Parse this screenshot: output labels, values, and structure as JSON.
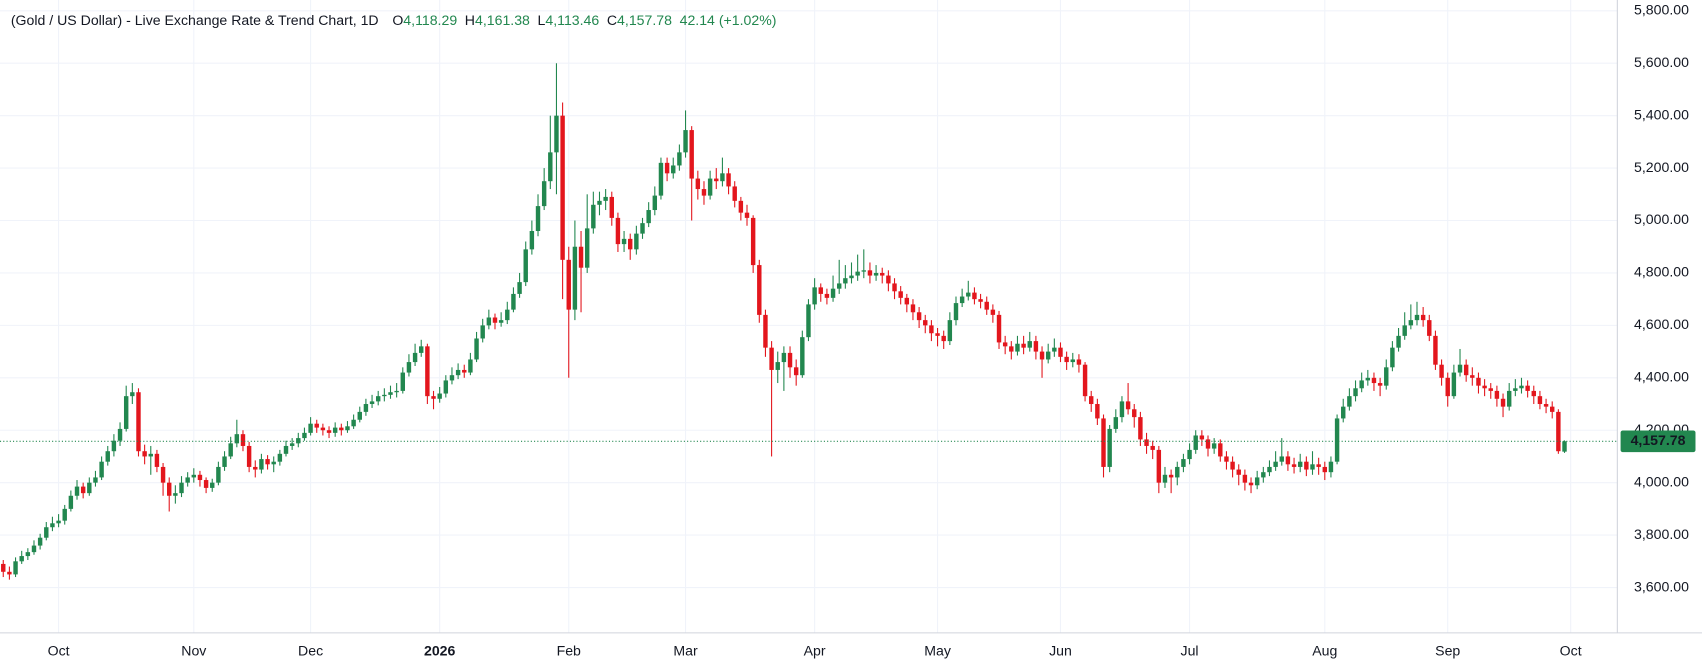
{
  "chart_data": {
    "type": "candlestick",
    "title": "(Gold / US Dollar) - Live Exchange Rate & Trend Chart, 1D",
    "ohlc_legend": [
      {
        "label": "O",
        "value": "4,118.29"
      },
      {
        "label": "H",
        "value": "4,161.38"
      },
      {
        "label": "L",
        "value": "4,113.46"
      },
      {
        "label": "C",
        "value": "4,157.78"
      }
    ],
    "change": "42.14 (+1.02%)",
    "categories": [
      null,
      null,
      null,
      null,
      null,
      null,
      null,
      null,
      null,
      "Oct",
      null,
      null,
      null,
      null,
      null,
      null,
      null,
      null,
      null,
      null,
      null,
      null,
      null,
      null,
      null,
      null,
      null,
      null,
      null,
      null,
      null,
      "Nov",
      null,
      null,
      null,
      null,
      null,
      null,
      null,
      null,
      null,
      null,
      null,
      null,
      null,
      null,
      null,
      null,
      null,
      null,
      "Dec",
      null,
      null,
      null,
      null,
      null,
      null,
      null,
      null,
      null,
      null,
      null,
      null,
      null,
      null,
      null,
      null,
      null,
      null,
      null,
      null,
      "2026",
      null,
      null,
      null,
      null,
      null,
      null,
      null,
      null,
      null,
      null,
      null,
      null,
      null,
      null,
      null,
      null,
      null,
      null,
      null,
      null,
      "Feb",
      null,
      null,
      null,
      null,
      null,
      null,
      null,
      null,
      null,
      null,
      null,
      null,
      null,
      null,
      null,
      null,
      null,
      null,
      "Mar",
      null,
      null,
      null,
      null,
      null,
      null,
      null,
      null,
      null,
      null,
      null,
      null,
      null,
      null,
      null,
      null,
      null,
      null,
      null,
      null,
      "Apr",
      null,
      null,
      null,
      null,
      null,
      null,
      null,
      null,
      null,
      null,
      null,
      null,
      null,
      null,
      null,
      null,
      null,
      null,
      null,
      "May",
      null,
      null,
      null,
      null,
      null,
      null,
      null,
      null,
      null,
      null,
      null,
      null,
      null,
      null,
      null,
      null,
      null,
      null,
      null,
      "Jun",
      null,
      null,
      null,
      null,
      null,
      null,
      null,
      null,
      null,
      null,
      null,
      null,
      null,
      null,
      null,
      null,
      null,
      null,
      null,
      null,
      "Jul",
      null,
      null,
      null,
      null,
      null,
      null,
      null,
      null,
      null,
      null,
      null,
      null,
      null,
      null,
      null,
      null,
      null,
      null,
      null,
      null,
      null,
      "Aug",
      null,
      null,
      null,
      null,
      null,
      null,
      null,
      null,
      null,
      null,
      null,
      null,
      null,
      null,
      null,
      null,
      null,
      null,
      null,
      "Sep",
      null,
      null,
      null,
      null,
      null,
      null,
      null,
      null,
      null,
      null,
      null,
      null,
      null,
      null,
      null,
      null,
      null,
      null,
      null,
      "Oct"
    ],
    "open": [
      3690,
      3660,
      3650,
      3700,
      3720,
      3735,
      3760,
      3790,
      3830,
      3845,
      3855,
      3900,
      3950,
      3985,
      3960,
      4000,
      4020,
      4080,
      4120,
      4160,
      4205,
      4330,
      4345,
      4120,
      4100,
      4110,
      4060,
      4000,
      3950,
      3960,
      4000,
      4020,
      4030,
      4010,
      3980,
      4000,
      4060,
      4100,
      4150,
      4185,
      4140,
      4060,
      4050,
      4090,
      4070,
      4080,
      4110,
      4140,
      4150,
      4170,
      4190,
      4225,
      4210,
      4200,
      4190,
      4210,
      4200,
      4215,
      4240,
      4270,
      4300,
      4310,
      4330,
      4335,
      4345,
      4350,
      4420,
      4460,
      4495,
      4520,
      4330,
      4320,
      4340,
      4390,
      4410,
      4430,
      4420,
      4470,
      4550,
      4600,
      4630,
      4610,
      4620,
      4660,
      4720,
      4765,
      4890,
      4960,
      5055,
      5150,
      5260,
      5400,
      4850,
      4660,
      4900,
      4820,
      4970,
      5060,
      5075,
      5090,
      5010,
      4910,
      4930,
      4890,
      4950,
      4990,
      5040,
      5095,
      5220,
      5180,
      5210,
      5260,
      5345,
      5160,
      5120,
      5095,
      5160,
      5150,
      5180,
      5130,
      5075,
      5030,
      5010,
      4830,
      4640,
      4515,
      4430,
      4460,
      4495,
      4440,
      4410,
      4555,
      4680,
      4745,
      4720,
      4705,
      4740,
      4760,
      4780,
      4790,
      4805,
      4810,
      4790,
      4800,
      4790,
      4760,
      4730,
      4705,
      4680,
      4650,
      4620,
      4600,
      4570,
      4560,
      4540,
      4620,
      4685,
      4710,
      4725,
      4700,
      4690,
      4660,
      4640,
      4535,
      4520,
      4500,
      4530,
      4515,
      4540,
      4500,
      4470,
      4500,
      4515,
      4480,
      4460,
      4470,
      4450,
      4330,
      4300,
      4245,
      4060,
      4205,
      4250,
      4310,
      4280,
      4250,
      4165,
      4140,
      4125,
      4000,
      4030,
      4020,
      4060,
      4090,
      4125,
      4180,
      4165,
      4130,
      4150,
      4100,
      4080,
      4050,
      4030,
      4000,
      3990,
      4020,
      4040,
      4060,
      4080,
      4100,
      4070,
      4060,
      4080,
      4050,
      4070,
      4060,
      4040,
      4080,
      4245,
      4290,
      4330,
      4360,
      4390,
      4400,
      4380,
      4370,
      4440,
      4515,
      4560,
      4600,
      4620,
      4640,
      4620,
      4560,
      4450,
      4400,
      4330,
      4420,
      4450,
      4410,
      4400,
      4370,
      4360,
      4350,
      4320,
      4290,
      4350,
      4360,
      4370,
      4350,
      4330,
      4300,
      4290,
      4270,
      4118.29,
      null
    ],
    "high": [
      3705,
      3680,
      3715,
      3740,
      3750,
      3780,
      3805,
      3850,
      3870,
      3880,
      3915,
      3970,
      4010,
      4000,
      4020,
      4045,
      4100,
      4140,
      4185,
      4230,
      4370,
      4380,
      4360,
      4145,
      4140,
      4125,
      4075,
      4020,
      3990,
      4025,
      4040,
      4055,
      4045,
      4020,
      4015,
      4080,
      4120,
      4175,
      4240,
      4200,
      4155,
      4085,
      4110,
      4105,
      4100,
      4125,
      4160,
      4170,
      4190,
      4210,
      4250,
      4240,
      4225,
      4215,
      4230,
      4225,
      4235,
      4260,
      4290,
      4320,
      4335,
      4350,
      4360,
      4370,
      4380,
      4440,
      4490,
      4530,
      4545,
      4530,
      4350,
      4365,
      4410,
      4440,
      4455,
      4450,
      4495,
      4575,
      4625,
      4660,
      4645,
      4650,
      4690,
      4745,
      4800,
      4920,
      5000,
      5100,
      5200,
      5400,
      5600,
      5450,
      4900,
      5000,
      4960,
      5100,
      5110,
      5110,
      5120,
      5110,
      5030,
      4960,
      4950,
      4980,
      5010,
      5070,
      5130,
      5240,
      5240,
      5240,
      5290,
      5420,
      5360,
      5190,
      5150,
      5190,
      5200,
      5240,
      5200,
      5150,
      5090,
      5060,
      5020,
      4850,
      4660,
      4540,
      4500,
      4520,
      4520,
      4470,
      4580,
      4700,
      4780,
      4760,
      4740,
      4790,
      4850,
      4830,
      4840,
      4870,
      4890,
      4840,
      4830,
      4820,
      4810,
      4780,
      4750,
      4720,
      4700,
      4670,
      4640,
      4620,
      4590,
      4580,
      4650,
      4710,
      4740,
      4770,
      4745,
      4720,
      4710,
      4680,
      4655,
      4560,
      4540,
      4560,
      4560,
      4575,
      4560,
      4520,
      4530,
      4550,
      4535,
      4500,
      4495,
      4490,
      4460,
      4350,
      4320,
      4260,
      4220,
      4280,
      4330,
      4380,
      4300,
      4270,
      4190,
      4160,
      4140,
      4060,
      4050,
      4080,
      4110,
      4150,
      4200,
      4200,
      4180,
      4170,
      4165,
      4120,
      4100,
      4070,
      4050,
      4020,
      4045,
      4060,
      4085,
      4120,
      4170,
      4120,
      4095,
      4110,
      4100,
      4120,
      4095,
      4080,
      4100,
      4260,
      4320,
      4360,
      4390,
      4420,
      4430,
      4420,
      4400,
      4470,
      4540,
      4590,
      4650,
      4680,
      4690,
      4670,
      4640,
      4580,
      4470,
      4420,
      4450,
      4510,
      4470,
      4440,
      4420,
      4395,
      4380,
      4370,
      4340,
      4380,
      4395,
      4400,
      4390,
      4370,
      4350,
      4320,
      4310,
      4280,
      4161.38,
      null
    ],
    "low": [
      3640,
      3630,
      3640,
      3690,
      3705,
      3725,
      3745,
      3780,
      3815,
      3830,
      3840,
      3890,
      3935,
      3940,
      3950,
      3985,
      4010,
      4065,
      4100,
      4140,
      4195,
      4300,
      4100,
      4070,
      4030,
      4040,
      3950,
      3890,
      3920,
      3945,
      3985,
      4000,
      3985,
      3960,
      3965,
      3990,
      4045,
      4090,
      4135,
      4120,
      4040,
      4020,
      4035,
      4050,
      4040,
      4065,
      4100,
      4125,
      4135,
      4160,
      4180,
      4190,
      4180,
      4170,
      4175,
      4180,
      4190,
      4205,
      4230,
      4255,
      4285,
      4295,
      4310,
      4320,
      4325,
      4340,
      4405,
      4445,
      4480,
      4300,
      4280,
      4305,
      4325,
      4375,
      4395,
      4400,
      4410,
      4460,
      4535,
      4585,
      4585,
      4595,
      4605,
      4650,
      4705,
      4750,
      4870,
      4940,
      5040,
      5120,
      5100,
      4700,
      4400,
      4620,
      4650,
      4800,
      4950,
      5020,
      5040,
      4980,
      4880,
      4880,
      4850,
      4870,
      4930,
      4975,
      5020,
      5080,
      5150,
      5160,
      5190,
      5240,
      5000,
      5080,
      5060,
      5080,
      5120,
      5130,
      5100,
      5050,
      5000,
      4980,
      4800,
      4610,
      4480,
      4100,
      4380,
      4350,
      4400,
      4370,
      4400,
      4540,
      4660,
      4690,
      4680,
      4690,
      4720,
      4740,
      4760,
      4770,
      4780,
      4760,
      4770,
      4760,
      4730,
      4700,
      4680,
      4650,
      4620,
      4590,
      4570,
      4540,
      4520,
      4510,
      4525,
      4600,
      4670,
      4695,
      4680,
      4665,
      4640,
      4610,
      4510,
      4490,
      4470,
      4485,
      4490,
      4500,
      4470,
      4400,
      4455,
      4480,
      4460,
      4430,
      4440,
      4420,
      4310,
      4270,
      4220,
      4020,
      4040,
      4190,
      4230,
      4260,
      4210,
      4140,
      4110,
      4090,
      3960,
      3980,
      3960,
      3990,
      4040,
      4070,
      4110,
      4140,
      4100,
      4110,
      4080,
      4050,
      4020,
      3990,
      3970,
      3960,
      3975,
      4000,
      4025,
      4045,
      4065,
      4045,
      4035,
      4040,
      4025,
      4030,
      4030,
      4010,
      4020,
      4070,
      4230,
      4275,
      4310,
      4345,
      4370,
      4350,
      4330,
      4355,
      4425,
      4500,
      4545,
      4585,
      4600,
      4595,
      4540,
      4430,
      4370,
      4290,
      4320,
      4405,
      4385,
      4370,
      4340,
      4330,
      4320,
      4290,
      4250,
      4275,
      4330,
      4340,
      4325,
      4300,
      4280,
      4265,
      4245,
      4110,
      4113.46,
      null
    ],
    "close": [
      3660,
      3650,
      3700,
      3720,
      3735,
      3760,
      3790,
      3830,
      3845,
      3855,
      3900,
      3950,
      3985,
      3960,
      4000,
      4020,
      4080,
      4120,
      4160,
      4205,
      4330,
      4345,
      4120,
      4100,
      4110,
      4060,
      4000,
      3950,
      3960,
      4000,
      4020,
      4030,
      4010,
      3980,
      4000,
      4060,
      4100,
      4150,
      4185,
      4140,
      4060,
      4050,
      4090,
      4070,
      4080,
      4110,
      4140,
      4150,
      4170,
      4190,
      4225,
      4210,
      4200,
      4190,
      4210,
      4200,
      4215,
      4240,
      4270,
      4300,
      4310,
      4330,
      4335,
      4345,
      4350,
      4420,
      4460,
      4495,
      4520,
      4330,
      4320,
      4340,
      4390,
      4410,
      4430,
      4420,
      4470,
      4550,
      4600,
      4630,
      4610,
      4620,
      4660,
      4720,
      4765,
      4890,
      4960,
      5055,
      5150,
      5260,
      5400,
      4850,
      4660,
      4900,
      4820,
      4970,
      5060,
      5075,
      5090,
      5010,
      4910,
      4930,
      4890,
      4950,
      4990,
      5040,
      5095,
      5220,
      5180,
      5210,
      5260,
      5345,
      5160,
      5120,
      5095,
      5160,
      5150,
      5180,
      5130,
      5075,
      5030,
      5010,
      4830,
      4640,
      4515,
      4430,
      4460,
      4495,
      4440,
      4410,
      4555,
      4680,
      4745,
      4720,
      4705,
      4740,
      4760,
      4780,
      4790,
      4805,
      4810,
      4790,
      4800,
      4790,
      4760,
      4730,
      4705,
      4680,
      4650,
      4620,
      4600,
      4570,
      4560,
      4540,
      4620,
      4685,
      4710,
      4725,
      4700,
      4690,
      4660,
      4640,
      4535,
      4520,
      4500,
      4530,
      4515,
      4540,
      4500,
      4470,
      4500,
      4515,
      4480,
      4460,
      4470,
      4450,
      4330,
      4300,
      4245,
      4060,
      4205,
      4250,
      4310,
      4280,
      4250,
      4165,
      4140,
      4125,
      4000,
      4030,
      4020,
      4060,
      4090,
      4125,
      4180,
      4165,
      4130,
      4150,
      4100,
      4080,
      4050,
      4030,
      4000,
      3990,
      4020,
      4040,
      4060,
      4080,
      4100,
      4070,
      4060,
      4080,
      4050,
      4070,
      4060,
      4040,
      4080,
      4245,
      4290,
      4330,
      4360,
      4390,
      4400,
      4380,
      4370,
      4440,
      4515,
      4560,
      4600,
      4620,
      4640,
      4620,
      4560,
      4450,
      4400,
      4330,
      4420,
      4450,
      4410,
      4400,
      4370,
      4360,
      4350,
      4320,
      4290,
      4350,
      4360,
      4370,
      4350,
      4330,
      4300,
      4290,
      4270,
      4120,
      4157.78,
      null
    ],
    "colors": {
      "up": "#22874f",
      "down": "#e3161d"
    },
    "last_price": {
      "value": 4157.78,
      "label": "4,157.78"
    },
    "ylim": [
      3427,
      5841
    ],
    "yticks": [
      {
        "value": 3600,
        "label": "3,600.00"
      },
      {
        "value": 3800,
        "label": "3,800.00"
      },
      {
        "value": 4000,
        "label": "4,000.00"
      },
      {
        "value": 4200,
        "label": "4,200.00"
      },
      {
        "value": 4400,
        "label": "4,400.00"
      },
      {
        "value": 4600,
        "label": "4,600.00"
      },
      {
        "value": 4800,
        "label": "4,800.00"
      },
      {
        "value": 5000,
        "label": "5,000.00"
      },
      {
        "value": 5200,
        "label": "5,200.00"
      },
      {
        "value": 5400,
        "label": "5,400.00"
      },
      {
        "value": 5600,
        "label": "5,600.00"
      },
      {
        "value": 5800,
        "label": "5,800.00"
      }
    ],
    "grid": true
  }
}
